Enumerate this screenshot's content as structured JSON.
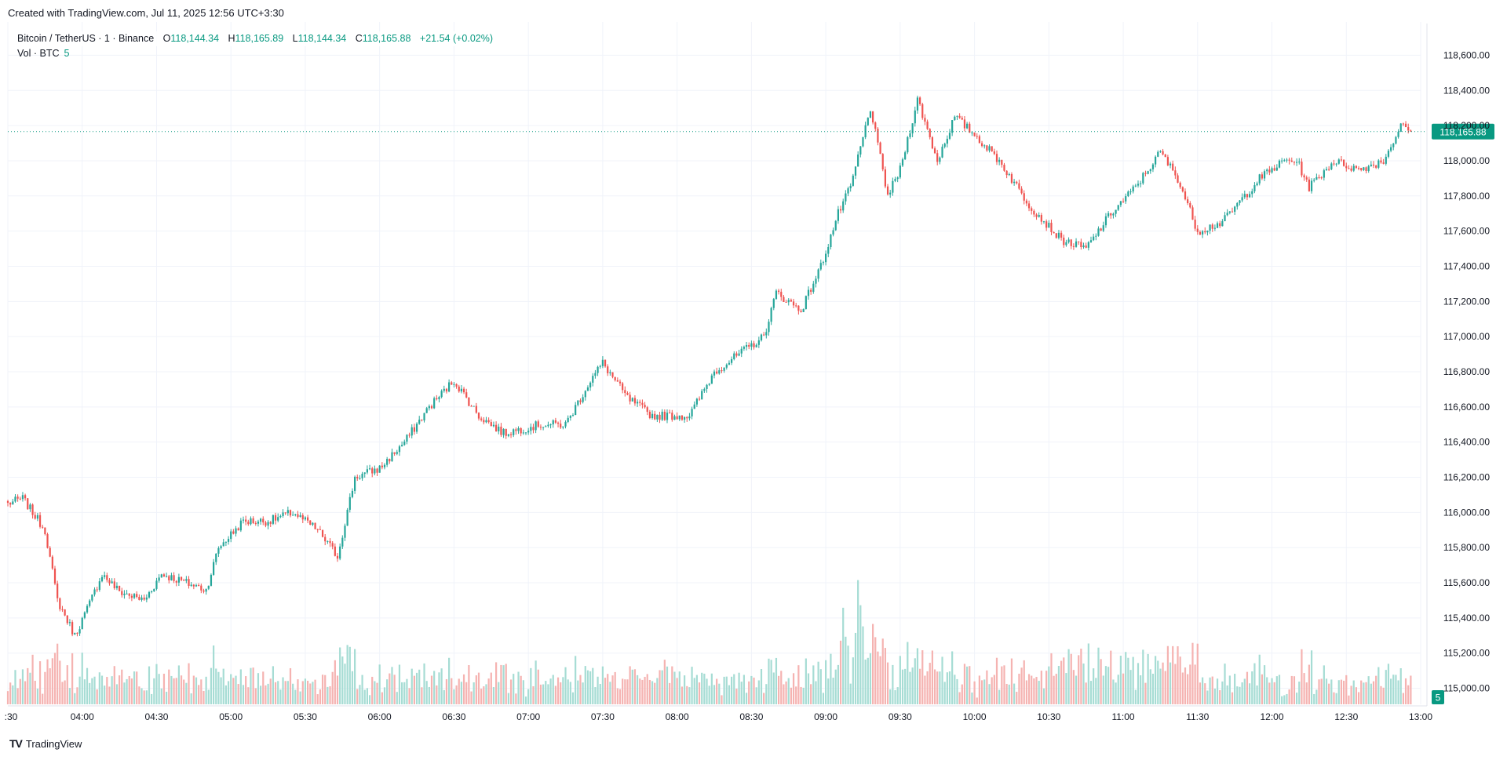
{
  "caption": "Created with TradingView.com, Jul 11, 2025 12:56 UTC+3:30",
  "legend": {
    "symbol": "Bitcoin / TetherUS · 1 · Binance",
    "o_label": "O",
    "o_value": "118,144.34",
    "h_label": "H",
    "h_value": "118,165.89",
    "l_label": "L",
    "l_value": "118,144.34",
    "c_label": "C",
    "c_value": "118,165.88",
    "change": "+21.54 (+0.02%)"
  },
  "volume_legend": {
    "label": "Vol · BTC",
    "value": "5"
  },
  "last_price_label": "118,165.88",
  "volume_badge": "5",
  "footer": {
    "brand": "TradingView",
    "mark": "TV"
  },
  "colors": {
    "up": "#26a69a",
    "down": "#ef5350",
    "up_volume": "#a6dcd4",
    "down_volume": "#f5b3b1",
    "price_line": "#089981",
    "grid": "#f0f3fa"
  },
  "chart_data": {
    "type": "candlestick",
    "x_tick_labels": [
      ":30",
      "04:00",
      "04:30",
      "05:00",
      "05:30",
      "06:00",
      "06:30",
      "07:00",
      "07:30",
      "08:00",
      "08:30",
      "09:00",
      "09:30",
      "10:00",
      "10:30",
      "11:00",
      "11:30",
      "12:00",
      "12:30",
      "13:00"
    ],
    "y_tick_labels": [
      "118,600.00",
      "118,400.00",
      "118,200.00",
      "118,000.00",
      "117,800.00",
      "117,600.00",
      "117,400.00",
      "117,200.00",
      "117,000.00",
      "116,800.00",
      "116,600.00",
      "116,400.00",
      "116,200.00",
      "116,000.00",
      "115,800.00",
      "115,600.00",
      "115,400.00",
      "115,200.00",
      "115,000.00"
    ],
    "y_ticks": [
      118600,
      118400,
      118200,
      118000,
      117800,
      117600,
      117400,
      117200,
      117000,
      116800,
      116600,
      116400,
      116200,
      116000,
      115800,
      115600,
      115400,
      115200,
      115000
    ],
    "ylim": [
      114900,
      118700
    ],
    "x_start": "03:30",
    "x_end": "13:00",
    "interval": "1 minute",
    "last_price": 118165.88,
    "close_path": [
      {
        "t": "03:30",
        "p": 116050
      },
      {
        "t": "03:36",
        "p": 116080
      },
      {
        "t": "03:45",
        "p": 115900
      },
      {
        "t": "03:50",
        "p": 115500
      },
      {
        "t": "03:57",
        "p": 115300
      },
      {
        "t": "04:02",
        "p": 115450
      },
      {
        "t": "04:08",
        "p": 115650
      },
      {
        "t": "04:15",
        "p": 115550
      },
      {
        "t": "04:25",
        "p": 115500
      },
      {
        "t": "04:32",
        "p": 115650
      },
      {
        "t": "04:42",
        "p": 115600
      },
      {
        "t": "04:50",
        "p": 115560
      },
      {
        "t": "04:55",
        "p": 115800
      },
      {
        "t": "05:05",
        "p": 115950
      },
      {
        "t": "05:15",
        "p": 115950
      },
      {
        "t": "05:25",
        "p": 116000
      },
      {
        "t": "05:35",
        "p": 115900
      },
      {
        "t": "05:43",
        "p": 115750
      },
      {
        "t": "05:50",
        "p": 116200
      },
      {
        "t": "06:00",
        "p": 116250
      },
      {
        "t": "06:10",
        "p": 116400
      },
      {
        "t": "06:20",
        "p": 116600
      },
      {
        "t": "06:30",
        "p": 116750
      },
      {
        "t": "06:40",
        "p": 116550
      },
      {
        "t": "06:50",
        "p": 116450
      },
      {
        "t": "07:05",
        "p": 116500
      },
      {
        "t": "07:15",
        "p": 116500
      },
      {
        "t": "07:25",
        "p": 116750
      },
      {
        "t": "07:30",
        "p": 116850
      },
      {
        "t": "07:40",
        "p": 116650
      },
      {
        "t": "07:50",
        "p": 116550
      },
      {
        "t": "08:05",
        "p": 116550
      },
      {
        "t": "08:15",
        "p": 116800
      },
      {
        "t": "08:25",
        "p": 116900
      },
      {
        "t": "08:35",
        "p": 117000
      },
      {
        "t": "08:40",
        "p": 117250
      },
      {
        "t": "08:50",
        "p": 117150
      },
      {
        "t": "08:58",
        "p": 117400
      },
      {
        "t": "09:05",
        "p": 117700
      },
      {
        "t": "09:10",
        "p": 117850
      },
      {
        "t": "09:18",
        "p": 118300
      },
      {
        "t": "09:25",
        "p": 117800
      },
      {
        "t": "09:30",
        "p": 117950
      },
      {
        "t": "09:37",
        "p": 118350
      },
      {
        "t": "09:45",
        "p": 118000
      },
      {
        "t": "09:52",
        "p": 118250
      },
      {
        "t": "10:00",
        "p": 118150
      },
      {
        "t": "10:10",
        "p": 118000
      },
      {
        "t": "10:22",
        "p": 117750
      },
      {
        "t": "10:35",
        "p": 117550
      },
      {
        "t": "10:45",
        "p": 117500
      },
      {
        "t": "10:55",
        "p": 117700
      },
      {
        "t": "11:05",
        "p": 117850
      },
      {
        "t": "11:15",
        "p": 118050
      },
      {
        "t": "11:22",
        "p": 117900
      },
      {
        "t": "11:30",
        "p": 117600
      },
      {
        "t": "11:40",
        "p": 117650
      },
      {
        "t": "11:55",
        "p": 117900
      },
      {
        "t": "12:05",
        "p": 118000
      },
      {
        "t": "12:10",
        "p": 118000
      },
      {
        "t": "12:15",
        "p": 117850
      },
      {
        "t": "12:25",
        "p": 118000
      },
      {
        "t": "12:35",
        "p": 117950
      },
      {
        "t": "12:45",
        "p": 118000
      },
      {
        "t": "12:52",
        "p": 118200
      },
      {
        "t": "12:56",
        "p": 118165.88
      }
    ],
    "volume_peak_btc": 30
  }
}
